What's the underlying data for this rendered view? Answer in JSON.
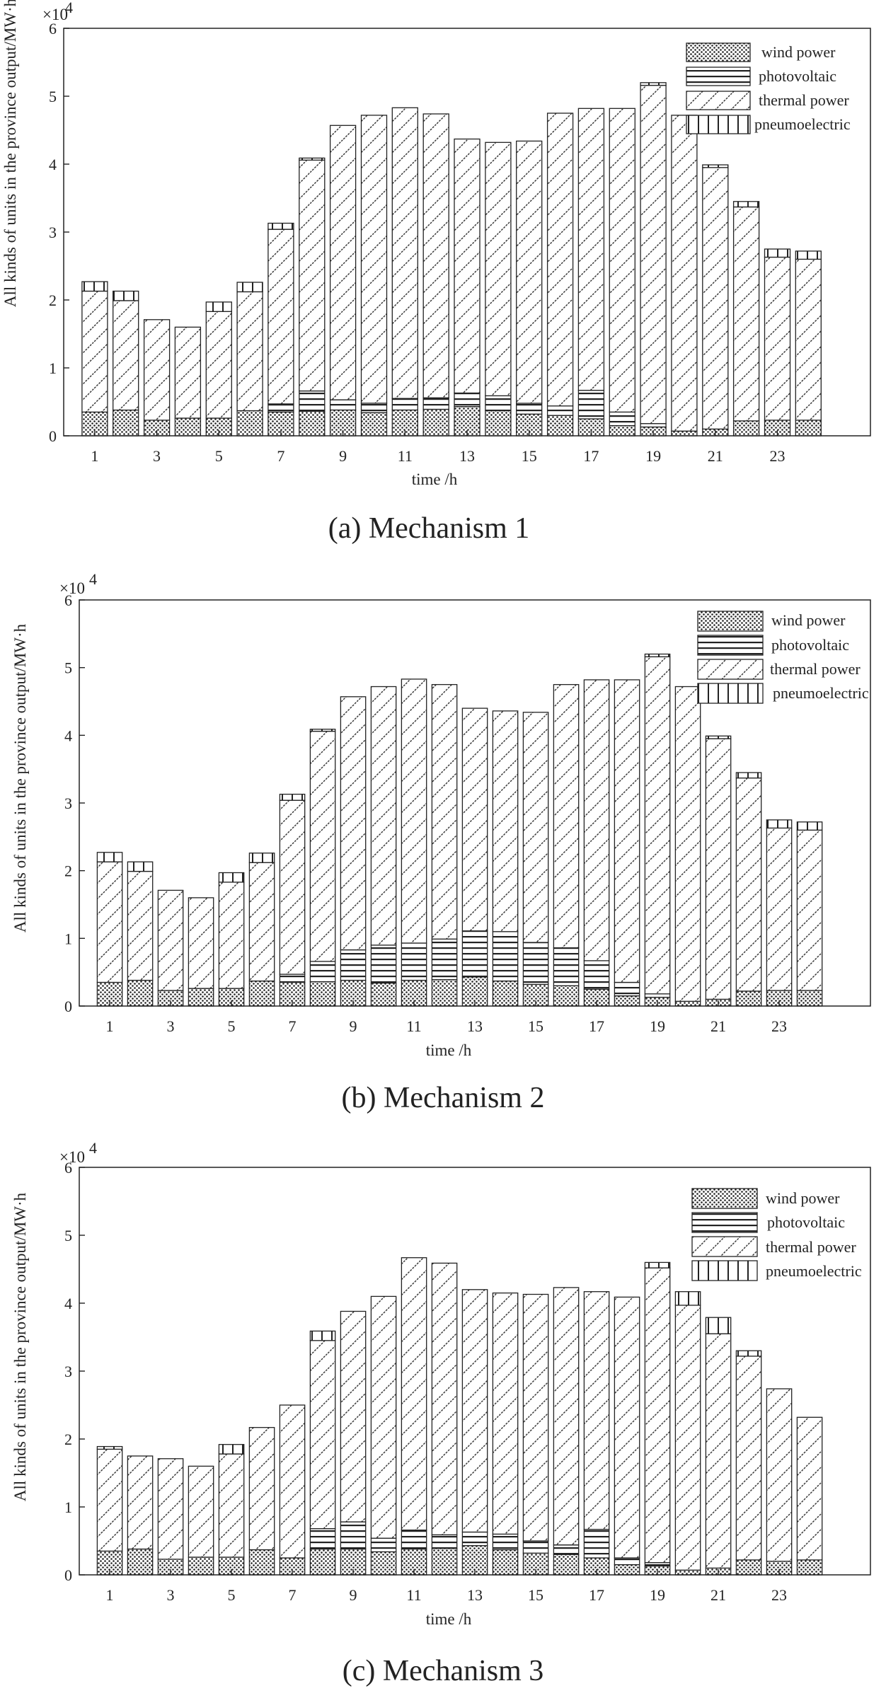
{
  "patterns": {
    "wind": "dots",
    "pv": "horizontal-lines",
    "thermal": "diagonal-hatch",
    "pneumo": "vertical-lines"
  },
  "colors": {
    "ink": "#222222",
    "hatch": "#333333",
    "fill": "#ffffff"
  },
  "chart_data": [
    {
      "type": "bar",
      "stacked": true,
      "caption": "(a) Mechanism 1",
      "xlabel": "time /h",
      "ylabel": "All kinds of units in the province output/MW·h",
      "y_multiplier": "×10",
      "y_exponent": "4",
      "ylim": [
        0,
        60000
      ],
      "yticks": [
        "0",
        "1",
        "2",
        "3",
        "4",
        "5",
        "6"
      ],
      "x": [
        1,
        2,
        3,
        4,
        5,
        6,
        7,
        8,
        9,
        10,
        11,
        12,
        13,
        14,
        15,
        16,
        17,
        18,
        19,
        20,
        21,
        22,
        23,
        24
      ],
      "xticks": [
        "1",
        "3",
        "5",
        "7",
        "9",
        "11",
        "13",
        "15",
        "17",
        "19",
        "21",
        "23"
      ],
      "legend_position": "top-right",
      "series": [
        {
          "key": "wind",
          "name": "wind power",
          "values": [
            3500,
            3800,
            2300,
            2600,
            2600,
            3700,
            3500,
            3600,
            3800,
            3400,
            3800,
            3900,
            4300,
            3700,
            3200,
            3000,
            2500,
            1500,
            1300,
            700,
            1000,
            2200,
            2300,
            2300
          ]
        },
        {
          "key": "pv",
          "name": "photovoltaic",
          "values": [
            0,
            0,
            0,
            0,
            0,
            0,
            1200,
            3000,
            1500,
            1400,
            1700,
            1700,
            2000,
            2200,
            1600,
            1400,
            4200,
            2000,
            500,
            0,
            0,
            0,
            0,
            0
          ]
        },
        {
          "key": "thermal",
          "name": "thermal power",
          "values": [
            17800,
            16100,
            14800,
            13400,
            15700,
            17500,
            25700,
            34000,
            40400,
            42400,
            42800,
            41800,
            37400,
            37300,
            38600,
            43100,
            41500,
            44700,
            49800,
            46500,
            38500,
            31500,
            24000,
            23700
          ]
        },
        {
          "key": "pneumo",
          "name": "pneumoelectric",
          "values": [
            1400,
            1400,
            0,
            0,
            1400,
            1400,
            900,
            300,
            0,
            0,
            0,
            0,
            0,
            0,
            0,
            0,
            0,
            0,
            400,
            0,
            400,
            800,
            1200,
            1200
          ]
        }
      ]
    },
    {
      "type": "bar",
      "stacked": true,
      "caption": "(b) Mechanism 2",
      "xlabel": "time /h",
      "ylabel": "All kinds of units in the province output/MW·h",
      "y_multiplier": "×10",
      "y_exponent": "4",
      "ylim": [
        0,
        60000
      ],
      "yticks": [
        "0",
        "1",
        "2",
        "3",
        "4",
        "5",
        "6"
      ],
      "x": [
        1,
        2,
        3,
        4,
        5,
        6,
        7,
        8,
        9,
        10,
        11,
        12,
        13,
        14,
        15,
        16,
        17,
        18,
        19,
        20,
        21,
        22,
        23,
        24
      ],
      "xticks": [
        "1",
        "3",
        "5",
        "7",
        "9",
        "11",
        "13",
        "15",
        "17",
        "19",
        "21",
        "23"
      ],
      "legend_position": "top-right",
      "series": [
        {
          "key": "wind",
          "name": "wind power",
          "values": [
            3500,
            3800,
            2300,
            2600,
            2600,
            3700,
            3500,
            3600,
            3800,
            3400,
            3800,
            3900,
            4300,
            3700,
            3200,
            3000,
            2500,
            1500,
            1300,
            700,
            1000,
            2200,
            2300,
            2300
          ]
        },
        {
          "key": "pv",
          "name": "photovoltaic",
          "values": [
            0,
            0,
            0,
            0,
            0,
            0,
            1200,
            3000,
            4500,
            5600,
            5500,
            6000,
            6800,
            7300,
            6200,
            5600,
            4200,
            2000,
            500,
            0,
            0,
            0,
            0,
            0
          ]
        },
        {
          "key": "thermal",
          "name": "thermal power",
          "values": [
            17800,
            16100,
            14800,
            13400,
            15700,
            17500,
            25700,
            34000,
            37400,
            38200,
            39000,
            37600,
            32900,
            32600,
            34000,
            38900,
            41500,
            44700,
            49800,
            46500,
            38500,
            31500,
            24000,
            23700
          ]
        },
        {
          "key": "pneumo",
          "name": "pneumoelectric",
          "values": [
            1400,
            1400,
            0,
            0,
            1400,
            1400,
            900,
            300,
            0,
            0,
            0,
            0,
            0,
            0,
            0,
            0,
            0,
            0,
            400,
            0,
            400,
            800,
            1200,
            1200
          ]
        }
      ]
    },
    {
      "type": "bar",
      "stacked": true,
      "caption": "(c) Mechanism 3",
      "xlabel": "time /h",
      "ylabel": "All kinds of units in the province output/MW·h",
      "y_multiplier": "×10",
      "y_exponent": "4",
      "ylim": [
        0,
        60000
      ],
      "yticks": [
        "0",
        "1",
        "2",
        "3",
        "4",
        "5",
        "6"
      ],
      "x": [
        1,
        2,
        3,
        4,
        5,
        6,
        7,
        8,
        9,
        10,
        11,
        12,
        13,
        14,
        15,
        16,
        17,
        18,
        19,
        20,
        21,
        22,
        23,
        24
      ],
      "xticks": [
        "1",
        "3",
        "5",
        "7",
        "9",
        "11",
        "13",
        "15",
        "17",
        "19",
        "21",
        "23"
      ],
      "legend_position": "top-right",
      "series": [
        {
          "key": "wind",
          "name": "wind power",
          "values": [
            3500,
            3800,
            2300,
            2600,
            2600,
            3700,
            2500,
            3800,
            3800,
            3400,
            3800,
            3900,
            4300,
            3700,
            3200,
            3000,
            2500,
            1500,
            1300,
            700,
            1000,
            2200,
            2000,
            2200
          ]
        },
        {
          "key": "pv",
          "name": "photovoltaic",
          "values": [
            0,
            0,
            0,
            0,
            0,
            0,
            0,
            3000,
            4000,
            2000,
            2800,
            2000,
            2000,
            2300,
            1800,
            1400,
            4200,
            1000,
            500,
            0,
            0,
            0,
            0,
            0
          ]
        },
        {
          "key": "thermal",
          "name": "thermal power",
          "values": [
            15000,
            13700,
            14800,
            13400,
            15200,
            18000,
            22500,
            27700,
            31000,
            35600,
            40100,
            40000,
            35700,
            35500,
            36300,
            37900,
            35000,
            38400,
            43400,
            39000,
            34500,
            30000,
            25400,
            21000
          ]
        },
        {
          "key": "pneumo",
          "name": "pneumoelectric",
          "values": [
            400,
            0,
            0,
            0,
            1400,
            0,
            0,
            1400,
            0,
            0,
            0,
            0,
            0,
            0,
            0,
            0,
            0,
            0,
            800,
            2000,
            2400,
            800,
            0,
            0
          ]
        }
      ]
    }
  ]
}
